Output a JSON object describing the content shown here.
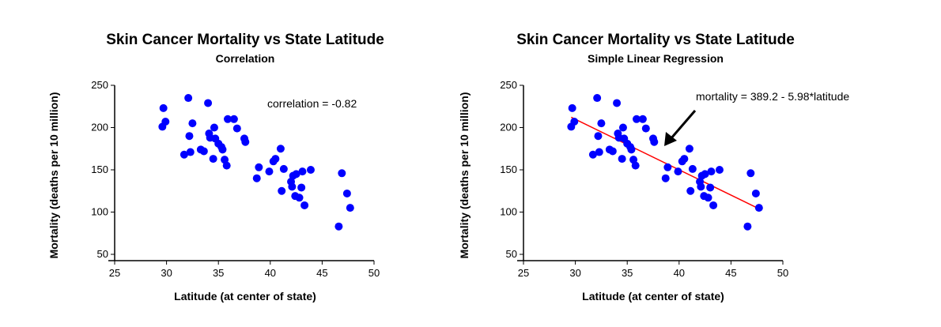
{
  "chart_data": [
    {
      "type": "scatter",
      "title": "Skin Cancer  Mortality vs State  Latitude",
      "subtitle": "Correlation",
      "xlabel": "Latitude (at center of state)",
      "ylabel": "Mortality (deaths per 10 million)",
      "xlim": [
        25,
        50
      ],
      "ylim": [
        50,
        250
      ],
      "xticks": [
        25,
        30,
        35,
        40,
        45,
        50
      ],
      "yticks": [
        50,
        100,
        150,
        200,
        250
      ],
      "point_color": "#0000ff",
      "annotation": "correlation = -0.82",
      "points": [
        [
          29.6,
          201
        ],
        [
          29.7,
          223
        ],
        [
          29.9,
          207
        ],
        [
          31.7,
          168
        ],
        [
          32.1,
          235
        ],
        [
          32.2,
          190
        ],
        [
          32.3,
          171
        ],
        [
          32.5,
          205
        ],
        [
          33.3,
          174
        ],
        [
          33.6,
          172
        ],
        [
          34.0,
          229
        ],
        [
          34.1,
          193
        ],
        [
          34.2,
          188
        ],
        [
          34.5,
          163
        ],
        [
          34.6,
          200
        ],
        [
          34.7,
          187
        ],
        [
          35.0,
          181
        ],
        [
          35.3,
          177
        ],
        [
          35.4,
          174
        ],
        [
          35.6,
          162
        ],
        [
          35.8,
          155
        ],
        [
          35.9,
          210
        ],
        [
          36.5,
          210
        ],
        [
          36.8,
          199
        ],
        [
          37.5,
          187
        ],
        [
          37.6,
          183
        ],
        [
          38.7,
          140
        ],
        [
          38.9,
          153
        ],
        [
          39.9,
          148
        ],
        [
          40.3,
          160
        ],
        [
          40.5,
          163
        ],
        [
          41.0,
          175
        ],
        [
          41.1,
          125
        ],
        [
          41.3,
          151
        ],
        [
          42.0,
          136
        ],
        [
          42.1,
          130
        ],
        [
          42.2,
          143
        ],
        [
          42.4,
          119
        ],
        [
          42.5,
          145
        ],
        [
          42.8,
          117
        ],
        [
          43.0,
          129
        ],
        [
          43.1,
          148
        ],
        [
          43.3,
          108
        ],
        [
          43.9,
          150
        ],
        [
          46.6,
          83
        ],
        [
          46.9,
          146
        ],
        [
          47.4,
          122
        ],
        [
          47.7,
          105
        ]
      ]
    },
    {
      "type": "scatter",
      "title": "Skin Cancer  Mortality vs State  Latitude",
      "subtitle": "Simple Linear Regression",
      "xlabel": "Latitude (at center of state)",
      "ylabel": "Mortality (deaths per 10 million)",
      "xlim": [
        25,
        50
      ],
      "ylim": [
        50,
        250
      ],
      "xticks": [
        25,
        30,
        35,
        40,
        45,
        50
      ],
      "yticks": [
        50,
        100,
        150,
        200,
        250
      ],
      "point_color": "#0000ff",
      "line_color": "#ff0000",
      "annotation": "mortality = 389.2 - 5.98*latitude",
      "regression": {
        "intercept": 389.2,
        "slope": -5.98,
        "x_range": [
          29.6,
          47.7
        ]
      },
      "points": [
        [
          29.6,
          201
        ],
        [
          29.7,
          223
        ],
        [
          29.9,
          207
        ],
        [
          31.7,
          168
        ],
        [
          32.1,
          235
        ],
        [
          32.2,
          190
        ],
        [
          32.3,
          171
        ],
        [
          32.5,
          205
        ],
        [
          33.3,
          174
        ],
        [
          33.6,
          172
        ],
        [
          34.0,
          229
        ],
        [
          34.1,
          193
        ],
        [
          34.2,
          188
        ],
        [
          34.5,
          163
        ],
        [
          34.6,
          200
        ],
        [
          34.7,
          187
        ],
        [
          35.0,
          181
        ],
        [
          35.3,
          177
        ],
        [
          35.4,
          174
        ],
        [
          35.6,
          162
        ],
        [
          35.8,
          155
        ],
        [
          35.9,
          210
        ],
        [
          36.5,
          210
        ],
        [
          36.8,
          199
        ],
        [
          37.5,
          187
        ],
        [
          37.6,
          183
        ],
        [
          38.7,
          140
        ],
        [
          38.9,
          153
        ],
        [
          39.9,
          148
        ],
        [
          40.3,
          160
        ],
        [
          40.5,
          163
        ],
        [
          41.0,
          175
        ],
        [
          41.1,
          125
        ],
        [
          41.3,
          151
        ],
        [
          42.0,
          136
        ],
        [
          42.1,
          130
        ],
        [
          42.2,
          143
        ],
        [
          42.4,
          119
        ],
        [
          42.5,
          145
        ],
        [
          42.8,
          117
        ],
        [
          43.0,
          129
        ],
        [
          43.1,
          148
        ],
        [
          43.3,
          108
        ],
        [
          43.9,
          150
        ],
        [
          46.6,
          83
        ],
        [
          46.9,
          146
        ],
        [
          47.4,
          122
        ],
        [
          47.7,
          105
        ]
      ]
    }
  ]
}
